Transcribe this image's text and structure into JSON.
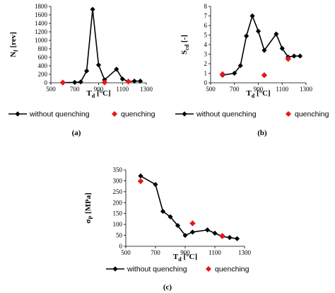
{
  "chart_data": [
    {
      "panel": "(a)",
      "type": "line",
      "xlabel": "T",
      "xlabel_sub": "d",
      "xlabel_unit": " [°C]",
      "ylabel": "N",
      "ylabel_sub": "f",
      "ylabel_unit": " [rev]",
      "xlim": [
        500,
        1300
      ],
      "ylim": [
        0,
        1800
      ],
      "xticks": [
        500,
        700,
        900,
        1100,
        1300
      ],
      "yticks": [
        0,
        200,
        400,
        600,
        800,
        1000,
        1200,
        1400,
        1600,
        1800
      ],
      "grid": false,
      "legend": "bottom",
      "series": [
        {
          "name": "without quenching",
          "color": "#000000",
          "marker": "diamond",
          "line": true,
          "x": [
            600,
            700,
            750,
            800,
            850,
            900,
            950,
            1050,
            1100,
            1150,
            1200,
            1250
          ],
          "y": [
            5,
            10,
            20,
            280,
            1730,
            420,
            70,
            320,
            90,
            30,
            40,
            40
          ]
        },
        {
          "name": "quenching",
          "color": "#e8161b",
          "marker": "diamond",
          "line": false,
          "x": [
            600,
            950,
            1150
          ],
          "y": [
            5,
            10,
            30
          ]
        }
      ]
    },
    {
      "panel": "(b)",
      "type": "line",
      "xlabel": "T",
      "xlabel_sub": "d",
      "xlabel_unit": " [°C]",
      "ylabel": "S",
      "ylabel_sub": "cd",
      "ylabel_unit": " [-]",
      "xlim": [
        500,
        1300
      ],
      "ylim": [
        0,
        8
      ],
      "xticks": [
        500,
        700,
        900,
        1100,
        1300
      ],
      "yticks": [
        0,
        1,
        2,
        3,
        4,
        5,
        6,
        7,
        8
      ],
      "grid": false,
      "legend": "bottom",
      "series": [
        {
          "name": "without quenching",
          "color": "#000000",
          "marker": "diamond",
          "line": true,
          "x": [
            600,
            700,
            750,
            800,
            850,
            900,
            950,
            1050,
            1100,
            1150,
            1200,
            1250
          ],
          "y": [
            0.8,
            1.0,
            1.8,
            4.9,
            7.0,
            5.4,
            3.4,
            5.1,
            3.6,
            2.7,
            2.8,
            2.8
          ]
        },
        {
          "name": "quenching",
          "color": "#e8161b",
          "marker": "diamond",
          "line": false,
          "x": [
            600,
            950,
            1150
          ],
          "y": [
            0.9,
            0.8,
            2.5
          ]
        }
      ]
    },
    {
      "panel": "(c)",
      "type": "line",
      "xlabel": "T",
      "xlabel_sub": "d",
      "xlabel_unit": " [°C]",
      "ylabel": "σ",
      "ylabel_sub": "P",
      "ylabel_unit": " [MPa]",
      "xlim": [
        500,
        1300
      ],
      "ylim": [
        0,
        350
      ],
      "xticks": [
        500,
        700,
        900,
        1100,
        1300
      ],
      "yticks": [
        0,
        50,
        100,
        150,
        200,
        250,
        300,
        350
      ],
      "grid": false,
      "legend": "bottom",
      "series": [
        {
          "name": "without quenching",
          "color": "#000000",
          "marker": "diamond",
          "line": true,
          "x": [
            600,
            700,
            750,
            800,
            850,
            900,
            950,
            1050,
            1100,
            1150,
            1200,
            1250
          ],
          "y": [
            322,
            283,
            160,
            135,
            95,
            50,
            65,
            75,
            60,
            45,
            40,
            35
          ]
        },
        {
          "name": "quenching",
          "color": "#e8161b",
          "marker": "diamond",
          "line": false,
          "x": [
            600,
            950,
            1150
          ],
          "y": [
            298,
            105,
            48
          ]
        }
      ]
    }
  ]
}
